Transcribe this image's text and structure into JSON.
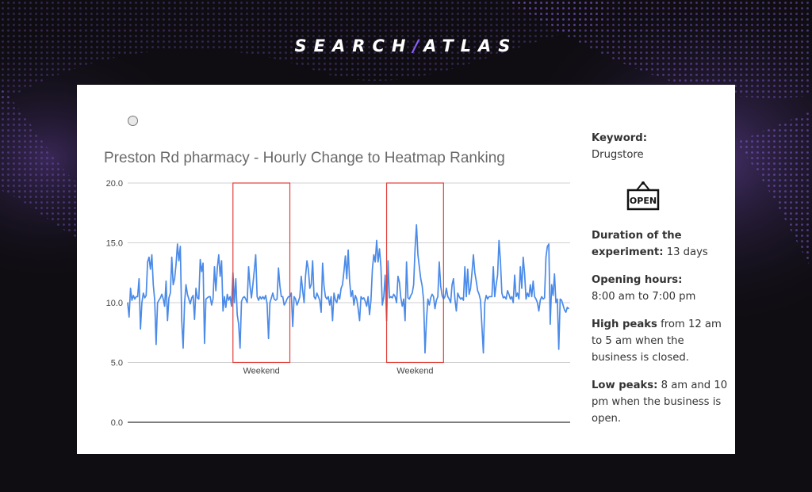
{
  "brand": {
    "left": "SEARCH",
    "slash": "/",
    "right": "ATLAS"
  },
  "icons": {
    "sign": "open-sign-icon",
    "radio": "radio-icon"
  },
  "colors": {
    "line": "#4a8ae8",
    "weekend_box": "#e0403a",
    "accent": "#8a5cf6"
  },
  "sidebar": {
    "keyword_label": "Keyword:",
    "keyword_value": "Drugstore",
    "sign_text": "OPEN",
    "duration_label": "Duration of the experiment:",
    "duration_value": " 13 days",
    "hours_label": "Opening hours:",
    "hours_value": "8:00 am to 7:00 pm",
    "high_label": "High peaks",
    "high_value": " from 12 am to 5 am when the business is closed.",
    "low_label": "Low peaks:",
    "low_value": "  8 am and 10 pm when the business is open."
  },
  "chart_data": {
    "type": "line",
    "title": "Preston Rd pharmacy - Hourly Change to Heatmap Ranking",
    "ylim": [
      0,
      20
    ],
    "yticks": [
      "0.0",
      "5.0",
      "10.0",
      "15.0",
      "20.0"
    ],
    "grid": true,
    "x_count": 312,
    "series": [
      {
        "values": [
          10.0,
          8.8,
          11.2,
          10.2,
          10.6,
          10.3,
          10.5,
          10.5,
          12.0,
          7.8,
          10.0,
          10.8,
          10.4,
          10.6,
          13.4,
          13.8,
          12.8,
          14.0,
          11.5,
          10.2,
          6.5,
          10.0,
          10.2,
          10.4,
          10.7,
          10.3,
          9.7,
          11.8,
          8.5,
          10.4,
          10.8,
          13.8,
          11.5,
          12.0,
          13.2,
          14.9,
          13.5,
          14.7,
          8.5,
          6.2,
          10.0,
          11.5,
          10.7,
          10.3,
          9.9,
          10.4,
          10.6,
          8.6,
          11.2,
          10.4,
          10.3,
          13.6,
          12.6,
          13.3,
          6.6,
          10.3,
          10.4,
          10.5,
          10.5,
          9.8,
          10.3,
          13.0,
          11.0,
          12.9,
          14.0,
          12.2,
          13.5,
          9.3,
          10.5,
          9.6,
          10.7,
          10.2,
          10.5,
          9.7,
          12.5,
          10.0,
          12.0,
          9.0,
          8.2,
          6.2,
          10.1,
          10.4,
          10.5,
          10.3,
          10.0,
          13.0,
          11.4,
          10.4,
          11.5,
          12.7,
          14.0,
          10.5,
          10.2,
          10.5,
          10.3,
          10.5,
          10.3,
          10.6,
          9.9,
          7.0,
          10.0,
          10.4,
          10.8,
          10.3,
          10.2,
          10.3,
          12.9,
          11.4,
          10.5,
          10.5,
          9.8,
          10.0,
          10.3,
          10.5,
          10.5,
          10.8,
          8.0,
          10.5,
          10.3,
          9.8,
          10.1,
          10.5,
          12.2,
          11.0,
          10.0,
          12.2,
          13.5,
          12.8,
          11.2,
          11.5,
          13.5,
          10.5,
          10.3,
          10.8,
          10.5,
          10.2,
          9.2,
          13.3,
          11.4,
          10.5,
          10.3,
          10.5,
          9.8,
          10.5,
          8.5,
          10.8,
          10.2,
          10.0,
          10.7,
          10.3,
          11.2,
          11.5,
          12.6,
          13.9,
          12.0,
          14.4,
          11.8,
          10.5,
          11.0,
          9.8,
          10.6,
          10.3,
          9.5,
          8.5,
          10.5,
          10.3,
          10.4,
          10.1,
          9.7,
          10.5,
          9.0,
          10.2,
          12.8,
          14.0,
          13.4,
          15.2,
          13.4,
          14.5,
          13.0,
          9.8,
          10.5,
          12.3,
          8.5,
          13.5,
          10.4,
          10.5,
          10.4,
          10.7,
          10.5,
          10.0,
          12.2,
          11.7,
          10.4,
          9.7,
          10.3,
          8.5,
          13.4,
          10.4,
          10.3,
          10.6,
          10.8,
          11.5,
          14.5,
          16.5,
          14.0,
          13.0,
          12.0,
          11.4,
          10.2,
          5.8,
          8.5,
          10.3,
          9.8,
          10.4,
          10.7,
          10.5,
          9.5,
          10.2,
          10.5,
          13.4,
          11.4,
          10.6,
          10.3,
          10.5,
          11.2,
          10.5,
          10.3,
          10.0,
          11.5,
          12.0,
          10.3,
          9.3,
          10.8,
          10.5,
          10.3,
          10.4,
          10.2,
          13.0,
          10.5,
          12.8,
          10.7,
          11.2,
          12.5,
          14.0,
          12.5,
          11.8,
          11.0,
          10.7,
          10.2,
          8.0,
          5.8,
          10.0,
          10.6,
          10.3,
          10.5,
          10.5,
          10.5,
          13.0,
          10.5,
          11.5,
          12.3,
          15.2,
          13.5,
          10.8,
          10.4,
          10.5,
          10.3,
          11.0,
          10.7,
          10.3,
          10.5,
          10.0,
          12.3,
          10.5,
          10.8,
          10.3,
          13.0,
          11.2,
          13.8,
          12.4,
          10.3,
          10.8,
          10.5,
          11.5,
          10.5,
          11.8,
          10.5,
          10.3,
          10.0,
          9.3,
          10.2,
          10.5,
          10.3,
          10.4,
          13.8,
          14.7,
          14.9,
          8.2,
          11.5,
          10.6,
          12.4,
          10.0,
          10.3,
          6.1,
          10.3,
          10.2,
          9.8,
          9.4,
          9.2,
          9.6,
          9.5
        ]
      }
    ],
    "annotations": [
      {
        "label": "Weekend",
        "x_start": 74,
        "x_end": 114,
        "y_min": 5.0,
        "y_max": 20.0
      },
      {
        "label": "Weekend",
        "x_start": 182,
        "x_end": 222,
        "y_min": 5.0,
        "y_max": 20.0
      }
    ]
  }
}
